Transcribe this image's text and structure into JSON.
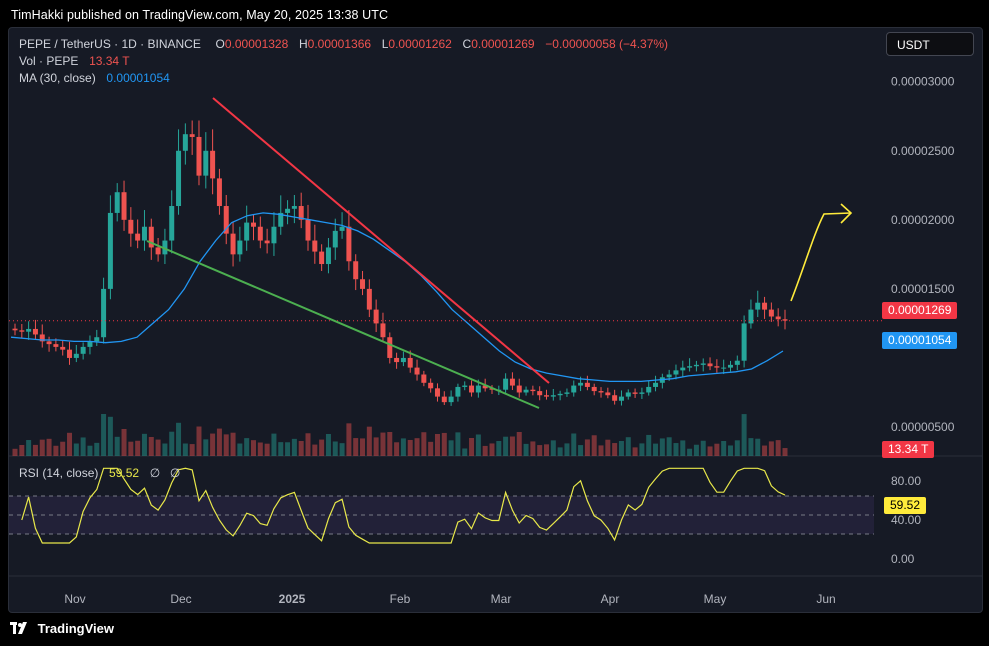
{
  "header": {
    "publisher": "TimHakki published on TradingView.com, May 20, 2025 13:38 UTC"
  },
  "legend": {
    "symbol": "PEPE / TetherUS · 1D · BINANCE",
    "o_label": "O",
    "o": "0.00001328",
    "h_label": "H",
    "h": "0.00001366",
    "l_label": "L",
    "l": "0.00001262",
    "c_label": "C",
    "c": "0.00001269",
    "change": "−0.00000058 (−4.37%)",
    "vol_label": "Vol · PEPE",
    "vol": "13.34 T",
    "ma_label": "MA (30, close)",
    "ma": "0.00001054",
    "rsi_label": "RSI (14, close)",
    "rsi": "59.52",
    "rsi_extra1": "∅",
    "rsi_extra2": "∅"
  },
  "unit_button": "USDT",
  "badges": {
    "price": "0.00001269",
    "ma": "0.00001054",
    "vol": "13.34 T",
    "rsi": "59.52"
  },
  "footer": {
    "brand": "TradingView"
  },
  "colors": {
    "up": "#26a69a",
    "down": "#ef5350",
    "ma": "#2196f3",
    "rsi": "#e8e84a",
    "trend_red": "#f23645",
    "trend_green": "#4caf50",
    "arrow": "#ffeb3b"
  },
  "chart_data": {
    "type": "candlestick",
    "x_axis": {
      "ticks": [
        "Nov",
        "Dec",
        "2025",
        "Feb",
        "Mar",
        "Apr",
        "May",
        "Jun"
      ]
    },
    "y_axis": {
      "ticks": [
        "0.00003000",
        "0.00002500",
        "0.00002000",
        "0.00001500",
        "0.00000500"
      ],
      "ylim": [
        2.9e-06,
        3.15e-05
      ]
    },
    "series": [
      {
        "name": "PEPE / TetherUS",
        "kind": "candles",
        "close": [
          1.2e-05,
          1.19e-05,
          1.21e-05,
          1.17e-05,
          1.12e-05,
          1.1e-05,
          1.08e-05,
          1.06e-05,
          1e-05,
          1.03e-05,
          1.08e-05,
          1.12e-05,
          1.15e-05,
          1.5e-05,
          2.05e-05,
          2.2e-05,
          2e-05,
          1.9e-05,
          1.85e-05,
          1.95e-05,
          1.8e-05,
          1.75e-05,
          1.85e-05,
          2.1e-05,
          2.5e-05,
          2.62e-05,
          2.6e-05,
          2.32e-05,
          2.5e-05,
          2.3e-05,
          2.1e-05,
          1.9e-05,
          1.75e-05,
          1.85e-05,
          1.98e-05,
          1.95e-05,
          1.85e-05,
          1.83e-05,
          1.95e-05,
          2.05e-05,
          2.08e-05,
          2.1e-05,
          2e-05,
          1.85e-05,
          1.77e-05,
          1.68e-05,
          1.8e-05,
          1.92e-05,
          1.95e-05,
          1.7e-05,
          1.57e-05,
          1.5e-05,
          1.35e-05,
          1.25e-05,
          1.15e-05,
          1e-05,
          9.7e-06,
          1e-05,
          9.3e-06,
          8.8e-06,
          8.2e-06,
          7.8e-06,
          7.2e-06,
          6.8e-06,
          7.2e-06,
          7.9e-06,
          8e-06,
          7.5e-06,
          8e-06,
          7.8e-06,
          7.7e-06,
          7.7e-06,
          8.5e-06,
          8e-06,
          7.5e-06,
          7.7e-06,
          7.6e-06,
          7.3e-06,
          7.2e-06,
          7.3e-06,
          7.4e-06,
          7.5e-06,
          8e-06,
          8.2e-06,
          7.9e-06,
          7.6e-06,
          7.5e-06,
          7.3e-06,
          6.9e-06,
          7.2e-06,
          7.5e-06,
          7.4e-06,
          7.5e-06,
          7.9e-06,
          8.2e-06,
          8.6e-06,
          8.8e-06,
          9.1e-06,
          9.3e-06,
          9.4e-06,
          9.5e-06,
          9.6e-06,
          9.4e-06,
          9.3e-06,
          9.3e-06,
          9.5e-06,
          9.8e-06,
          1.25e-05,
          1.35e-05,
          1.4e-05,
          1.35e-05,
          1.3e-05,
          1.28e-05,
          1.27e-05
        ]
      },
      {
        "name": "MA (30, close)",
        "kind": "line",
        "values": [
          1.15e-05,
          1.14e-05,
          1.13e-05,
          1.13e-05,
          1.12e-05,
          1.12e-05,
          1.11e-05,
          1.12e-05,
          1.15e-05,
          1.25e-05,
          1.35e-05,
          1.5e-05,
          1.7e-05,
          1.85e-05,
          1.98e-05,
          2.03e-05,
          2.05e-05,
          2.04e-05,
          2.02e-05,
          2e-05,
          1.98e-05,
          1.96e-05,
          1.92e-05,
          1.86e-05,
          1.78e-05,
          1.7e-05,
          1.6e-05,
          1.48e-05,
          1.35e-05,
          1.25e-05,
          1.15e-05,
          1.05e-05,
          9.7e-06,
          9.2e-06,
          8.9e-06,
          8.7e-06,
          8.5e-06,
          8.4e-06,
          8.3e-06,
          8.3e-06,
          8.3e-06,
          8.4e-06,
          8.5e-06,
          8.7e-06,
          8.8e-06,
          8.9e-06,
          9e-06,
          9.2e-06,
          9.8e-06,
          1.05e-05
        ]
      },
      {
        "name": "RSI (14, close)",
        "kind": "oscillator",
        "levels": [
          "80.00",
          "40.00",
          "0.00"
        ],
        "last": 59.52
      }
    ]
  }
}
